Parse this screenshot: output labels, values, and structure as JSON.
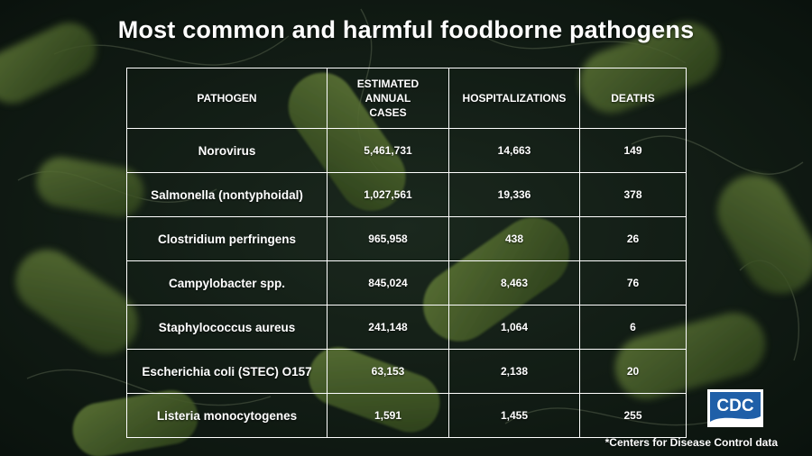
{
  "title": "Most common and harmful foodborne pathogens",
  "colors": {
    "background": "#16231a",
    "bacteria": "#5a7a34",
    "line": "#ffffff",
    "cdc_blue": "#1f5fa8"
  },
  "table": {
    "headers": {
      "pathogen": "PATHOGEN",
      "cases_line1": "ESTIMATED ANNUAL",
      "cases_line2": "CASES",
      "hospitalizations": "HOSPITALIZATIONS",
      "deaths": "DEATHS"
    },
    "rows": [
      {
        "pathogen": "Norovirus",
        "cases": "5,461,731",
        "hospitalizations": "14,663",
        "deaths": "149"
      },
      {
        "pathogen": "Salmonella (nontyphoidal)",
        "cases": "1,027,561",
        "hospitalizations": "19,336",
        "deaths": "378"
      },
      {
        "pathogen": "Clostridium perfringens",
        "cases": "965,958",
        "hospitalizations": "438",
        "deaths": "26"
      },
      {
        "pathogen": "Campylobacter spp.",
        "cases": "845,024",
        "hospitalizations": "8,463",
        "deaths": "76"
      },
      {
        "pathogen": "Staphylococcus aureus",
        "cases": "241,148",
        "hospitalizations": "1,064",
        "deaths": "6"
      },
      {
        "pathogen": "Escherichia coli (STEC) O157",
        "cases": "63,153",
        "hospitalizations": "2,138",
        "deaths": "20"
      },
      {
        "pathogen": "Listeria monocytogenes",
        "cases": "1,591",
        "hospitalizations": "1,455",
        "deaths": "255"
      }
    ]
  },
  "logo": {
    "text": "CDC",
    "icon": "cdc-logo"
  },
  "footnote": "*Centers for Disease Control data"
}
